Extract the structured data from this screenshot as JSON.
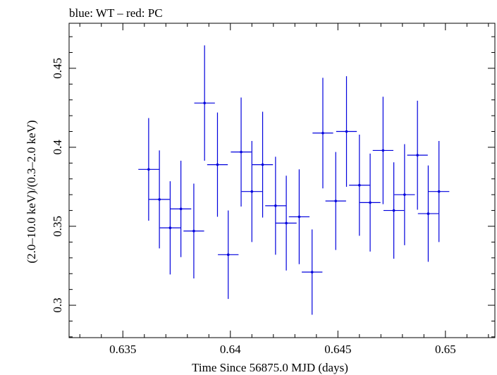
{
  "chart_data": {
    "type": "scatter",
    "title": "blue: WT – red: PC",
    "xlabel": "Time Since 56875.0 MJD (days)",
    "ylabel": "(2.0–10.0 keV)/(0.3–2.0 keV)",
    "xlim": [
      0.6325,
      0.6523
    ],
    "ylim": [
      0.2795,
      0.4785
    ],
    "x_ticks": [
      0.635,
      0.64,
      0.645,
      0.65
    ],
    "x_tick_labels": [
      "0.635",
      "0.64",
      "0.645",
      "0.65"
    ],
    "y_ticks": [
      0.3,
      0.35,
      0.4,
      0.45
    ],
    "y_tick_labels": [
      "0.3",
      "0.35",
      "0.4",
      "0.45"
    ],
    "grid": false,
    "legend": "none",
    "series": [
      {
        "color": "#0000dd",
        "points": [
          {
            "x": 0.6362,
            "xerr": 0.00048,
            "y": 0.386,
            "yerr": 0.0325
          },
          {
            "x": 0.6367,
            "xerr": 0.00048,
            "y": 0.367,
            "yerr": 0.031
          },
          {
            "x": 0.6372,
            "xerr": 0.00048,
            "y": 0.349,
            "yerr": 0.0295
          },
          {
            "x": 0.6377,
            "xerr": 0.00048,
            "y": 0.361,
            "yerr": 0.0305
          },
          {
            "x": 0.6383,
            "xerr": 0.00048,
            "y": 0.347,
            "yerr": 0.03
          },
          {
            "x": 0.6388,
            "xerr": 0.00048,
            "y": 0.428,
            "yerr": 0.0365
          },
          {
            "x": 0.6394,
            "xerr": 0.00048,
            "y": 0.389,
            "yerr": 0.033
          },
          {
            "x": 0.6399,
            "xerr": 0.00048,
            "y": 0.332,
            "yerr": 0.028
          },
          {
            "x": 0.6405,
            "xerr": 0.00048,
            "y": 0.397,
            "yerr": 0.0345
          },
          {
            "x": 0.641,
            "xerr": 0.00048,
            "y": 0.372,
            "yerr": 0.032
          },
          {
            "x": 0.6415,
            "xerr": 0.00048,
            "y": 0.389,
            "yerr": 0.0335
          },
          {
            "x": 0.6421,
            "xerr": 0.00048,
            "y": 0.363,
            "yerr": 0.031
          },
          {
            "x": 0.6426,
            "xerr": 0.00048,
            "y": 0.352,
            "yerr": 0.03
          },
          {
            "x": 0.6432,
            "xerr": 0.00048,
            "y": 0.356,
            "yerr": 0.03
          },
          {
            "x": 0.6438,
            "xerr": 0.00048,
            "y": 0.321,
            "yerr": 0.027
          },
          {
            "x": 0.6443,
            "xerr": 0.00048,
            "y": 0.409,
            "yerr": 0.035
          },
          {
            "x": 0.6449,
            "xerr": 0.00048,
            "y": 0.366,
            "yerr": 0.031
          },
          {
            "x": 0.6454,
            "xerr": 0.00048,
            "y": 0.41,
            "yerr": 0.035
          },
          {
            "x": 0.646,
            "xerr": 0.00048,
            "y": 0.376,
            "yerr": 0.032
          },
          {
            "x": 0.6465,
            "xerr": 0.00048,
            "y": 0.365,
            "yerr": 0.031
          },
          {
            "x": 0.6471,
            "xerr": 0.00048,
            "y": 0.398,
            "yerr": 0.034
          },
          {
            "x": 0.6476,
            "xerr": 0.00048,
            "y": 0.36,
            "yerr": 0.0305
          },
          {
            "x": 0.6481,
            "xerr": 0.00048,
            "y": 0.37,
            "yerr": 0.032
          },
          {
            "x": 0.6487,
            "xerr": 0.00048,
            "y": 0.395,
            "yerr": 0.0345
          },
          {
            "x": 0.6492,
            "xerr": 0.00048,
            "y": 0.358,
            "yerr": 0.0305
          },
          {
            "x": 0.6497,
            "xerr": 0.00048,
            "y": 0.372,
            "yerr": 0.032
          }
        ]
      }
    ]
  }
}
